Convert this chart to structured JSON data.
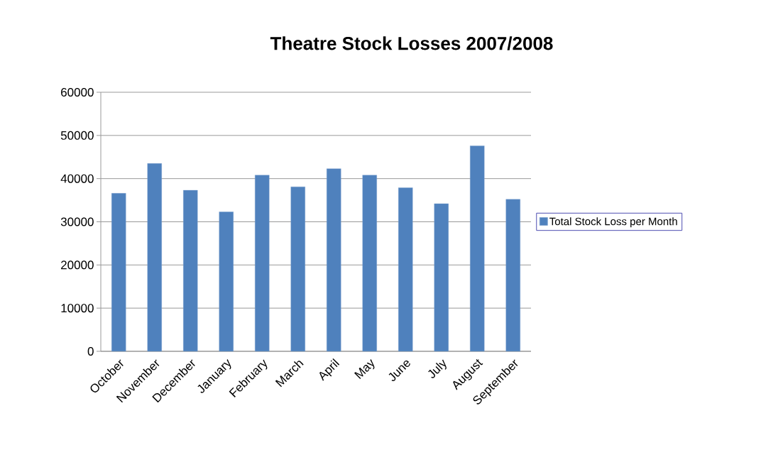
{
  "chart_data": {
    "type": "bar",
    "title": "Theatre Stock Losses 2007/2008",
    "categories": [
      "October",
      "November",
      "December",
      "January",
      "February",
      "March",
      "April",
      "May",
      "June",
      "July",
      "August",
      "September"
    ],
    "series": [
      {
        "name": "Total Stock Loss per Month",
        "color": "#4f81bd",
        "values": [
          36600,
          43500,
          37300,
          32300,
          40800,
          38100,
          42300,
          40800,
          37900,
          34200,
          47600,
          35200
        ]
      }
    ],
    "ylim": [
      0,
      60000
    ],
    "yticks": [
      0,
      10000,
      20000,
      30000,
      40000,
      50000,
      60000
    ],
    "grid": "y",
    "legend": "right"
  }
}
